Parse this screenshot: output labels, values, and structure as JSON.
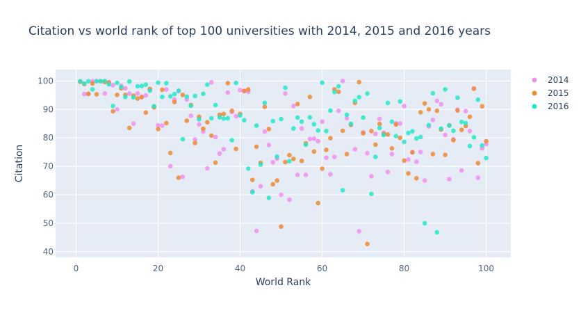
{
  "chart_data": {
    "type": "scatter",
    "title": "Citation vs world rank of top 100 universities with 2014, 2015 and 2016 years",
    "xlabel": "World Rank",
    "ylabel": "Citation",
    "xlim": [
      -5,
      106
    ],
    "ylim": [
      38,
      104
    ],
    "xticks": [
      0,
      20,
      40,
      60,
      80,
      100
    ],
    "yticks": [
      40,
      50,
      60,
      70,
      80,
      90,
      100
    ],
    "grid": true,
    "legend_position": "top-right",
    "series": [
      {
        "name": "2014",
        "color": "#f28ef0",
        "points": [
          [
            1,
            99.8
          ],
          [
            2,
            95.4
          ],
          [
            3,
            95.4
          ],
          [
            4,
            99.9
          ],
          [
            5,
            100
          ],
          [
            6,
            99.9
          ],
          [
            7,
            95.6
          ],
          [
            8,
            99.6
          ],
          [
            9,
            98.5
          ],
          [
            10,
            90
          ],
          [
            11,
            98.3
          ],
          [
            12,
            97.4
          ],
          [
            13,
            95.6
          ],
          [
            14,
            85
          ],
          [
            15,
            95.6
          ],
          [
            16,
            94.5
          ],
          [
            17,
            94.9
          ],
          [
            18,
            97
          ],
          [
            19,
            91.1
          ],
          [
            20,
            84.4
          ],
          [
            21,
            84.3
          ],
          [
            22,
            97
          ],
          [
            23,
            70
          ],
          [
            24,
            93.5
          ],
          [
            25,
            96.4
          ],
          [
            26,
            66.3
          ],
          [
            27,
            93.5
          ],
          [
            28,
            87.8
          ],
          [
            29,
            79.4
          ],
          [
            30,
            84.7
          ],
          [
            31,
            82.2
          ],
          [
            32,
            69.3
          ],
          [
            33,
            99.5
          ],
          [
            34,
            80.3
          ],
          [
            35,
            74.5
          ],
          [
            36,
            76
          ],
          [
            37,
            95.9
          ],
          [
            38,
            89.1
          ],
          [
            39,
            87.6
          ],
          [
            40,
            96.8
          ],
          [
            41,
            96.4
          ],
          [
            42,
            96.2
          ],
          [
            43,
            61.2
          ],
          [
            44,
            47.3
          ],
          [
            45,
            63
          ],
          [
            46,
            82.2
          ],
          [
            47,
            77.5
          ],
          [
            48,
            71.4
          ],
          [
            49,
            72.7
          ],
          [
            50,
            60
          ],
          [
            51,
            95.6
          ],
          [
            52,
            58.3
          ],
          [
            53,
            91.2
          ],
          [
            54,
            67
          ],
          [
            55,
            83.3
          ],
          [
            56,
            67
          ],
          [
            57,
            79.6
          ],
          [
            58,
            79.7
          ],
          [
            59,
            78.8
          ],
          [
            60,
            85.7
          ],
          [
            61,
            73
          ],
          [
            62,
            67.2
          ],
          [
            63,
            73.3
          ],
          [
            64,
            89.5
          ],
          [
            65,
            100
          ],
          [
            66,
            86.9
          ],
          [
            67,
            84.6
          ],
          [
            68,
            76
          ],
          [
            69,
            47.2
          ],
          [
            70,
            82
          ],
          [
            71,
            74.6
          ],
          [
            72,
            66.5
          ],
          [
            73,
            81.4
          ],
          [
            74,
            86.7
          ],
          [
            75,
            81.8
          ],
          [
            76,
            68
          ],
          [
            77,
            74.3
          ],
          [
            78,
            85.1
          ],
          [
            79,
            85
          ],
          [
            80,
            91.2
          ],
          [
            81,
            72.4
          ],
          [
            82,
            75
          ],
          [
            83,
            71.6
          ],
          [
            84,
            75
          ],
          [
            85,
            65
          ],
          [
            86,
            84
          ],
          [
            87,
            86.3
          ],
          [
            88,
            93
          ],
          [
            89,
            91.8
          ],
          [
            90,
            81
          ],
          [
            91,
            65.5
          ],
          [
            92,
            79.5
          ],
          [
            93,
            89.9
          ],
          [
            94,
            68.5
          ],
          [
            95,
            89.4
          ],
          [
            96,
            82.4
          ],
          [
            97,
            97.3
          ],
          [
            98,
            66
          ],
          [
            99,
            76.3
          ],
          [
            100,
            77.8
          ]
        ]
      },
      {
        "name": "2015",
        "color": "#ef8a32",
        "points": [
          [
            1,
            99.7
          ],
          [
            2,
            98.9
          ],
          [
            3,
            95.5
          ],
          [
            4,
            99.1
          ],
          [
            5,
            95.3
          ],
          [
            6,
            99.9
          ],
          [
            7,
            99.6
          ],
          [
            8,
            99.4
          ],
          [
            9,
            89.3
          ],
          [
            10,
            95.1
          ],
          [
            11,
            97.4
          ],
          [
            12,
            95.1
          ],
          [
            13,
            83.5
          ],
          [
            14,
            94.8
          ],
          [
            15,
            93.8
          ],
          [
            16,
            94.3
          ],
          [
            17,
            88.9
          ],
          [
            18,
            97.2
          ],
          [
            19,
            90.7
          ],
          [
            20,
            83.1
          ],
          [
            21,
            96.9
          ],
          [
            22,
            85.2
          ],
          [
            23,
            74.7
          ],
          [
            24,
            92.6
          ],
          [
            25,
            66
          ],
          [
            26,
            95.1
          ],
          [
            27,
            86
          ],
          [
            28,
            91.5
          ],
          [
            29,
            78.2
          ],
          [
            30,
            87.4
          ],
          [
            31,
            83.2
          ],
          [
            32,
            85.5
          ],
          [
            33,
            80.8
          ],
          [
            34,
            71.3
          ],
          [
            35,
            88.1
          ],
          [
            36,
            88.4
          ],
          [
            37,
            99.2
          ],
          [
            38,
            89.5
          ],
          [
            39,
            76.1
          ],
          [
            40,
            88.4
          ],
          [
            41,
            96.5
          ],
          [
            42,
            97
          ],
          [
            43,
            65.2
          ],
          [
            44,
            76.9
          ],
          [
            45,
            71.2
          ],
          [
            46,
            90.9
          ],
          [
            47,
            83.1
          ],
          [
            48,
            63.7
          ],
          [
            49,
            65
          ],
          [
            50,
            48.8
          ],
          [
            51,
            71.5
          ],
          [
            52,
            73.9
          ],
          [
            53,
            72.6
          ],
          [
            54,
            91.9
          ],
          [
            55,
            71.9
          ],
          [
            56,
            78.1
          ],
          [
            57,
            94.4
          ],
          [
            58,
            75.2
          ],
          [
            59,
            57.1
          ],
          [
            60,
            69.2
          ],
          [
            61,
            75.8
          ],
          [
            62,
            79.9
          ],
          [
            63,
            97
          ],
          [
            64,
            96.2
          ],
          [
            65,
            82.5
          ],
          [
            66,
            74.3
          ],
          [
            67,
            84.6
          ],
          [
            68,
            92.3
          ],
          [
            69,
            99.6
          ],
          [
            70,
            81.6
          ],
          [
            71,
            42.7
          ],
          [
            72,
            82.4
          ],
          [
            73,
            77.6
          ],
          [
            74,
            84.9
          ],
          [
            75,
            81.4
          ],
          [
            76,
            81.2
          ],
          [
            77,
            76.3
          ],
          [
            78,
            84.7
          ],
          [
            79,
            80
          ],
          [
            80,
            72
          ],
          [
            81,
            67.5
          ],
          [
            82,
            74.9
          ],
          [
            83,
            65.8
          ],
          [
            84,
            89
          ],
          [
            85,
            92.1
          ],
          [
            86,
            90
          ],
          [
            87,
            74.3
          ],
          [
            88,
            89.5
          ],
          [
            89,
            82.9
          ],
          [
            90,
            74
          ],
          [
            91,
            84.4
          ],
          [
            92,
            79.2
          ],
          [
            93,
            89.6
          ],
          [
            94,
            82.8
          ],
          [
            95,
            84.2
          ],
          [
            96,
            87.4
          ],
          [
            97,
            97.3
          ],
          [
            98,
            71.1
          ],
          [
            99,
            91.1
          ],
          [
            100,
            78.8
          ]
        ]
      },
      {
        "name": "2016",
        "color": "#25e7c9",
        "points": [
          [
            1,
            99.9
          ],
          [
            2,
            99.1
          ],
          [
            3,
            99.9
          ],
          [
            4,
            97
          ],
          [
            5,
            99.9
          ],
          [
            6,
            99.9
          ],
          [
            7,
            100
          ],
          [
            8,
            98.8
          ],
          [
            9,
            91.2
          ],
          [
            10,
            99.3
          ],
          [
            11,
            97.9
          ],
          [
            12,
            94.4
          ],
          [
            13,
            99.8
          ],
          [
            14,
            94.2
          ],
          [
            15,
            98.1
          ],
          [
            16,
            98.2
          ],
          [
            17,
            98.7
          ],
          [
            18,
            96.6
          ],
          [
            19,
            91.1
          ],
          [
            20,
            99.4
          ],
          [
            21,
            94.4
          ],
          [
            22,
            99.2
          ],
          [
            23,
            94.6
          ],
          [
            24,
            95.4
          ],
          [
            25,
            96.6
          ],
          [
            26,
            79.5
          ],
          [
            27,
            94.5
          ],
          [
            28,
            91.3
          ],
          [
            29,
            94.7
          ],
          [
            30,
            86.5
          ],
          [
            31,
            95.5
          ],
          [
            32,
            98.7
          ],
          [
            33,
            86.9
          ],
          [
            34,
            91.5
          ],
          [
            35,
            87.2
          ],
          [
            36,
            86.8
          ],
          [
            37,
            86.9
          ],
          [
            38,
            79.2
          ],
          [
            39,
            99.3
          ],
          [
            40,
            87.9
          ],
          [
            41,
            86.2
          ],
          [
            42,
            69.2
          ],
          [
            43,
            60.9
          ],
          [
            44,
            84.3
          ],
          [
            45,
            70.6
          ],
          [
            46,
            92.3
          ],
          [
            47,
            58.9
          ],
          [
            48,
            85.9
          ],
          [
            49,
            73.4
          ],
          [
            50,
            86.6
          ],
          [
            51,
            97.6
          ],
          [
            52,
            71.8
          ],
          [
            53,
            83.3
          ],
          [
            54,
            87.1
          ],
          [
            55,
            85.7
          ],
          [
            56,
            77.6
          ],
          [
            57,
            87.2
          ],
          [
            58,
            84.8
          ],
          [
            59,
            82.6
          ],
          [
            60,
            99.4
          ],
          [
            61,
            82.4
          ],
          [
            62,
            89.6
          ],
          [
            63,
            96.1
          ],
          [
            64,
            98.1
          ],
          [
            65,
            61.6
          ],
          [
            66,
            88.1
          ],
          [
            67,
            84.9
          ],
          [
            68,
            93
          ],
          [
            69,
            94.3
          ],
          [
            70,
            87.1
          ],
          [
            71,
            95.6
          ],
          [
            72,
            60.3
          ],
          [
            73,
            73.3
          ],
          [
            74,
            83.5
          ],
          [
            75,
            81
          ],
          [
            76,
            92.3
          ],
          [
            77,
            85.7
          ],
          [
            78,
            80.6
          ],
          [
            79,
            92.8
          ],
          [
            80,
            78.6
          ],
          [
            81,
            81.7
          ],
          [
            82,
            82.3
          ],
          [
            83,
            79.8
          ],
          [
            84,
            80.3
          ],
          [
            85,
            50
          ],
          [
            86,
            84.5
          ],
          [
            87,
            95.7
          ],
          [
            88,
            46.8
          ],
          [
            89,
            83.2
          ],
          [
            90,
            97
          ],
          [
            91,
            84.3
          ],
          [
            92,
            82.5
          ],
          [
            93,
            94.1
          ],
          [
            94,
            85.6
          ],
          [
            95,
            85.2
          ],
          [
            96,
            77.1
          ],
          [
            97,
            80.2
          ],
          [
            98,
            93.4
          ],
          [
            99,
            77.3
          ],
          [
            100,
            72.9
          ]
        ]
      }
    ]
  }
}
